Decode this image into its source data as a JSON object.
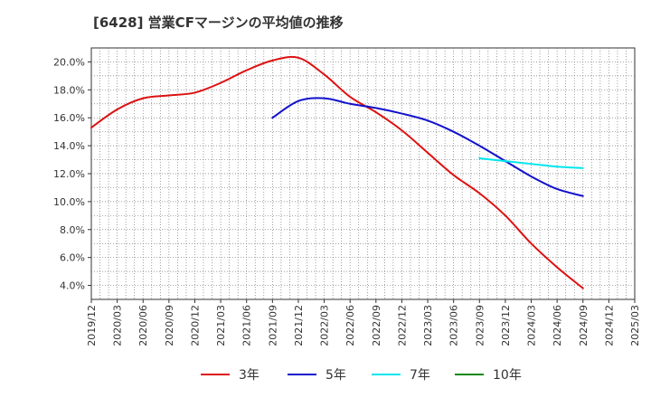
{
  "chart_data": {
    "type": "line",
    "title": "[6428]  営業CFマージンの平均値の推移",
    "xlabel": "",
    "ylabel": "",
    "x_ticks": [
      "2019/12",
      "2020/03",
      "2020/06",
      "2020/09",
      "2020/12",
      "2021/03",
      "2021/06",
      "2021/09",
      "2021/12",
      "2022/03",
      "2022/06",
      "2022/09",
      "2022/12",
      "2023/03",
      "2023/06",
      "2023/09",
      "2023/12",
      "2024/03",
      "2024/06",
      "2024/09",
      "2024/12",
      "2025/03"
    ],
    "y_ticks": [
      "4.0%",
      "6.0%",
      "8.0%",
      "10.0%",
      "12.0%",
      "14.0%",
      "16.0%",
      "18.0%",
      "20.0%"
    ],
    "ylim": [
      3.0,
      21.0
    ],
    "grid": true,
    "legend_position": "bottom",
    "series": [
      {
        "name": "3年",
        "color": "#dd1111",
        "points": [
          {
            "x": "2019/12",
            "y": 15.3
          },
          {
            "x": "2020/03",
            "y": 16.6
          },
          {
            "x": "2020/06",
            "y": 17.4
          },
          {
            "x": "2020/09",
            "y": 17.6
          },
          {
            "x": "2020/12",
            "y": 17.8
          },
          {
            "x": "2021/03",
            "y": 18.5
          },
          {
            "x": "2021/06",
            "y": 19.4
          },
          {
            "x": "2021/09",
            "y": 20.1
          },
          {
            "x": "2021/12",
            "y": 20.3
          },
          {
            "x": "2022/03",
            "y": 19.1
          },
          {
            "x": "2022/06",
            "y": 17.5
          },
          {
            "x": "2022/09",
            "y": 16.4
          },
          {
            "x": "2022/12",
            "y": 15.1
          },
          {
            "x": "2023/03",
            "y": 13.5
          },
          {
            "x": "2023/06",
            "y": 11.9
          },
          {
            "x": "2023/09",
            "y": 10.6
          },
          {
            "x": "2023/12",
            "y": 9.0
          },
          {
            "x": "2024/03",
            "y": 7.0
          },
          {
            "x": "2024/06",
            "y": 5.3
          },
          {
            "x": "2024/09",
            "y": 3.8
          }
        ]
      },
      {
        "name": "5年",
        "color": "#1111cc",
        "points": [
          {
            "x": "2021/09",
            "y": 16.0
          },
          {
            "x": "2021/12",
            "y": 17.2
          },
          {
            "x": "2022/03",
            "y": 17.4
          },
          {
            "x": "2022/06",
            "y": 17.0
          },
          {
            "x": "2022/09",
            "y": 16.7
          },
          {
            "x": "2022/12",
            "y": 16.3
          },
          {
            "x": "2023/03",
            "y": 15.8
          },
          {
            "x": "2023/06",
            "y": 15.0
          },
          {
            "x": "2023/09",
            "y": 14.0
          },
          {
            "x": "2023/12",
            "y": 12.9
          },
          {
            "x": "2024/03",
            "y": 11.8
          },
          {
            "x": "2024/06",
            "y": 10.9
          },
          {
            "x": "2024/09",
            "y": 10.4
          }
        ]
      },
      {
        "name": "7年",
        "color": "#00e5ee",
        "points": [
          {
            "x": "2023/09",
            "y": 13.1
          },
          {
            "x": "2023/12",
            "y": 12.9
          },
          {
            "x": "2024/03",
            "y": 12.7
          },
          {
            "x": "2024/06",
            "y": 12.5
          },
          {
            "x": "2024/09",
            "y": 12.4
          }
        ]
      },
      {
        "name": "10年",
        "color": "#118811",
        "points": []
      }
    ]
  }
}
